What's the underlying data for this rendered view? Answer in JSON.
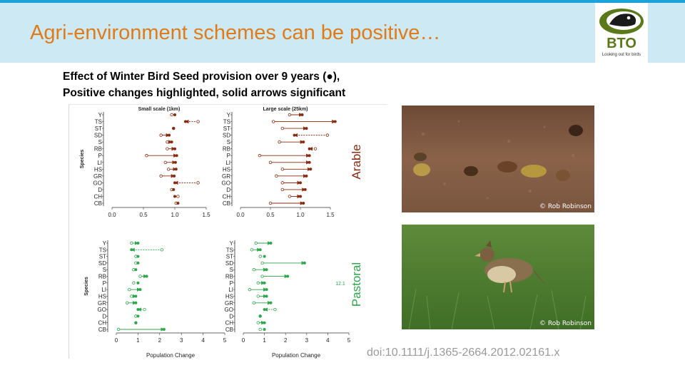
{
  "slide": {
    "title": "Agri-environment schemes can be positive…",
    "caption_line1": "Effect of Winter Bird Seed provision over 9 years (●),",
    "caption_line2": "Positive changes highlighted, solid arrows significant",
    "doi": "doi:10.1111/j.1365-2664.2012.02161.x",
    "photo1_credit": "© Rob Robinson",
    "photo2_credit": "© Rob Robinson"
  },
  "logo": {
    "text": "BTO",
    "tagline": "Looking out for birds",
    "icon": "bird-head-icon"
  },
  "colors": {
    "banner": "#cdeaf4",
    "title": "#e07b1a",
    "arable": "#8b2a0e",
    "pastoral": "#2aa84a",
    "logo_green": "#5a7a1a"
  },
  "chart_data": [
    {
      "type": "scatter",
      "title": "Small scale (1km)",
      "group": "Arable",
      "ylabel": "Species",
      "xlabel": "",
      "xlim": [
        0.0,
        1.5
      ],
      "xticks": [
        "0.0",
        "0.5",
        "1.0",
        "1.5"
      ],
      "categories": [
        "Y",
        "TS",
        "ST",
        "SD",
        "S",
        "RB",
        "P",
        "LI",
        "HS",
        "GR",
        "GO",
        "D",
        "CH",
        "CB"
      ],
      "start": [
        0.95,
        1.37,
        0.98,
        0.78,
        0.88,
        0.88,
        0.55,
        0.85,
        0.9,
        0.78,
        1.37,
        0.95,
        1.05,
        1.02
      ],
      "end": [
        1.0,
        1.17,
        0.98,
        0.91,
        0.95,
        1.0,
        1.03,
        1.01,
        1.02,
        0.99,
        1.0,
        0.98,
        1.0,
        1.05
      ]
    },
    {
      "type": "scatter",
      "title": "Large scale (25km)",
      "group": "Arable",
      "ylabel": "",
      "xlabel": "",
      "xlim": [
        0.0,
        1.5
      ],
      "xticks": [
        "0.0",
        "0.5",
        "1.0",
        "1.5"
      ],
      "categories": [
        "Y",
        "TS",
        "ST",
        "SD",
        "S",
        "RB",
        "P",
        "LI",
        "HS",
        "GR",
        "GO",
        "D",
        "CH",
        "CB"
      ],
      "start": [
        0.82,
        0.55,
        0.7,
        1.45,
        0.65,
        1.25,
        0.32,
        0.5,
        0.7,
        0.6,
        0.7,
        0.7,
        0.82,
        0.5
      ],
      "end": [
        1.03,
        1.58,
        1.1,
        0.9,
        1.05,
        1.15,
        1.15,
        1.15,
        1.17,
        1.1,
        1.0,
        1.08,
        1.0,
        1.05
      ]
    },
    {
      "type": "scatter",
      "title": "",
      "group": "Pastoral",
      "ylabel": "Species",
      "xlabel": "Population Change",
      "xlim": [
        0,
        5
      ],
      "xticks": [
        "0",
        "1",
        "2",
        "3",
        "4",
        "5"
      ],
      "categories": [
        "Y",
        "TS",
        "ST",
        "SD",
        "S",
        "RB",
        "P",
        "LI",
        "HS",
        "GR",
        "GO",
        "D",
        "CH",
        "CB"
      ],
      "start": [
        0.7,
        2.1,
        0.9,
        0.9,
        0.8,
        1.1,
        0.8,
        0.6,
        0.7,
        0.5,
        1.3,
        0.9,
        0.9,
        0.1
      ],
      "end": [
        1.0,
        0.7,
        1.0,
        1.0,
        0.9,
        1.4,
        1.0,
        1.1,
        0.9,
        0.9,
        1.0,
        1.0,
        0.9,
        2.2
      ]
    },
    {
      "type": "scatter",
      "title": "",
      "group": "Pastoral",
      "ylabel": "",
      "xlabel": "Population Change",
      "xlim": [
        0,
        5
      ],
      "xticks": [
        "0",
        "1",
        "2",
        "3",
        "4",
        "5"
      ],
      "categories": [
        "Y",
        "TS",
        "ST",
        "SD",
        "S",
        "RB",
        "P",
        "LI",
        "HS",
        "GR",
        "GO",
        "D",
        "CH",
        "CB"
      ],
      "start": [
        0.6,
        0.4,
        0.8,
        0.9,
        0.5,
        0.9,
        0.7,
        0.3,
        0.7,
        0.5,
        1.5,
        0.8,
        0.7,
        0.8
      ],
      "end": [
        1.3,
        0.8,
        1.0,
        2.9,
        1.1,
        2.1,
        1.0,
        1.1,
        1.1,
        1.3,
        1.0,
        0.8,
        1.0,
        1.0
      ],
      "annotation": "12.1"
    }
  ]
}
